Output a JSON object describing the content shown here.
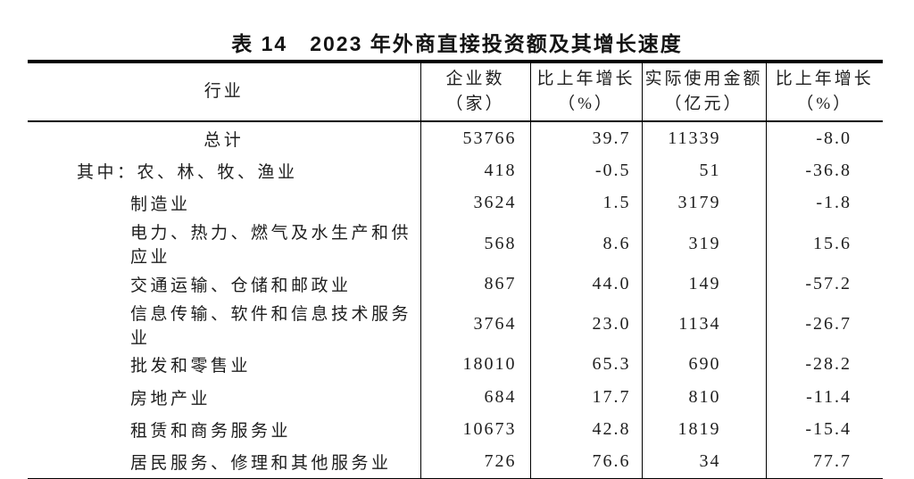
{
  "title": "表 14　2023 年外商直接投资额及其增长速度",
  "colors": {
    "background": "#ffffff",
    "text": "#1e1e1e",
    "border": "#000000"
  },
  "table": {
    "columns": [
      {
        "label": "行业",
        "unit": ""
      },
      {
        "label": "企业数",
        "unit": "（家）"
      },
      {
        "label": "比上年增长",
        "unit": "（%）"
      },
      {
        "label": "实际使用金额",
        "unit": "（亿元）"
      },
      {
        "label": "比上年增长",
        "unit": "（%）"
      }
    ],
    "rows": [
      {
        "prefix": "",
        "industry": "总计",
        "values": [
          "53766",
          "39.7",
          "11339",
          "-8.0"
        ]
      },
      {
        "prefix": "其中：",
        "industry": "农、林、牧、渔业",
        "values": [
          "418",
          "-0.5",
          "51",
          "-36.8"
        ]
      },
      {
        "prefix": "",
        "industry": "制造业",
        "values": [
          "3624",
          "1.5",
          "3179",
          "-1.8"
        ]
      },
      {
        "prefix": "",
        "industry": "电力、热力、燃气及水生产和供应业",
        "values": [
          "568",
          "8.6",
          "319",
          "15.6"
        ]
      },
      {
        "prefix": "",
        "industry": "交通运输、仓储和邮政业",
        "values": [
          "867",
          "44.0",
          "149",
          "-57.2"
        ]
      },
      {
        "prefix": "",
        "industry": "信息传输、软件和信息技术服务业",
        "values": [
          "3764",
          "23.0",
          "1134",
          "-26.7"
        ]
      },
      {
        "prefix": "",
        "industry": "批发和零售业",
        "values": [
          "18010",
          "65.3",
          "690",
          "-28.2"
        ]
      },
      {
        "prefix": "",
        "industry": "房地产业",
        "values": [
          "684",
          "17.7",
          "810",
          "-11.4"
        ]
      },
      {
        "prefix": "",
        "industry": "租赁和商务服务业",
        "values": [
          "10673",
          "42.8",
          "1819",
          "-15.4"
        ]
      },
      {
        "prefix": "",
        "industry": "居民服务、修理和其他服务业",
        "values": [
          "726",
          "76.6",
          "34",
          "77.7"
        ]
      }
    ]
  }
}
